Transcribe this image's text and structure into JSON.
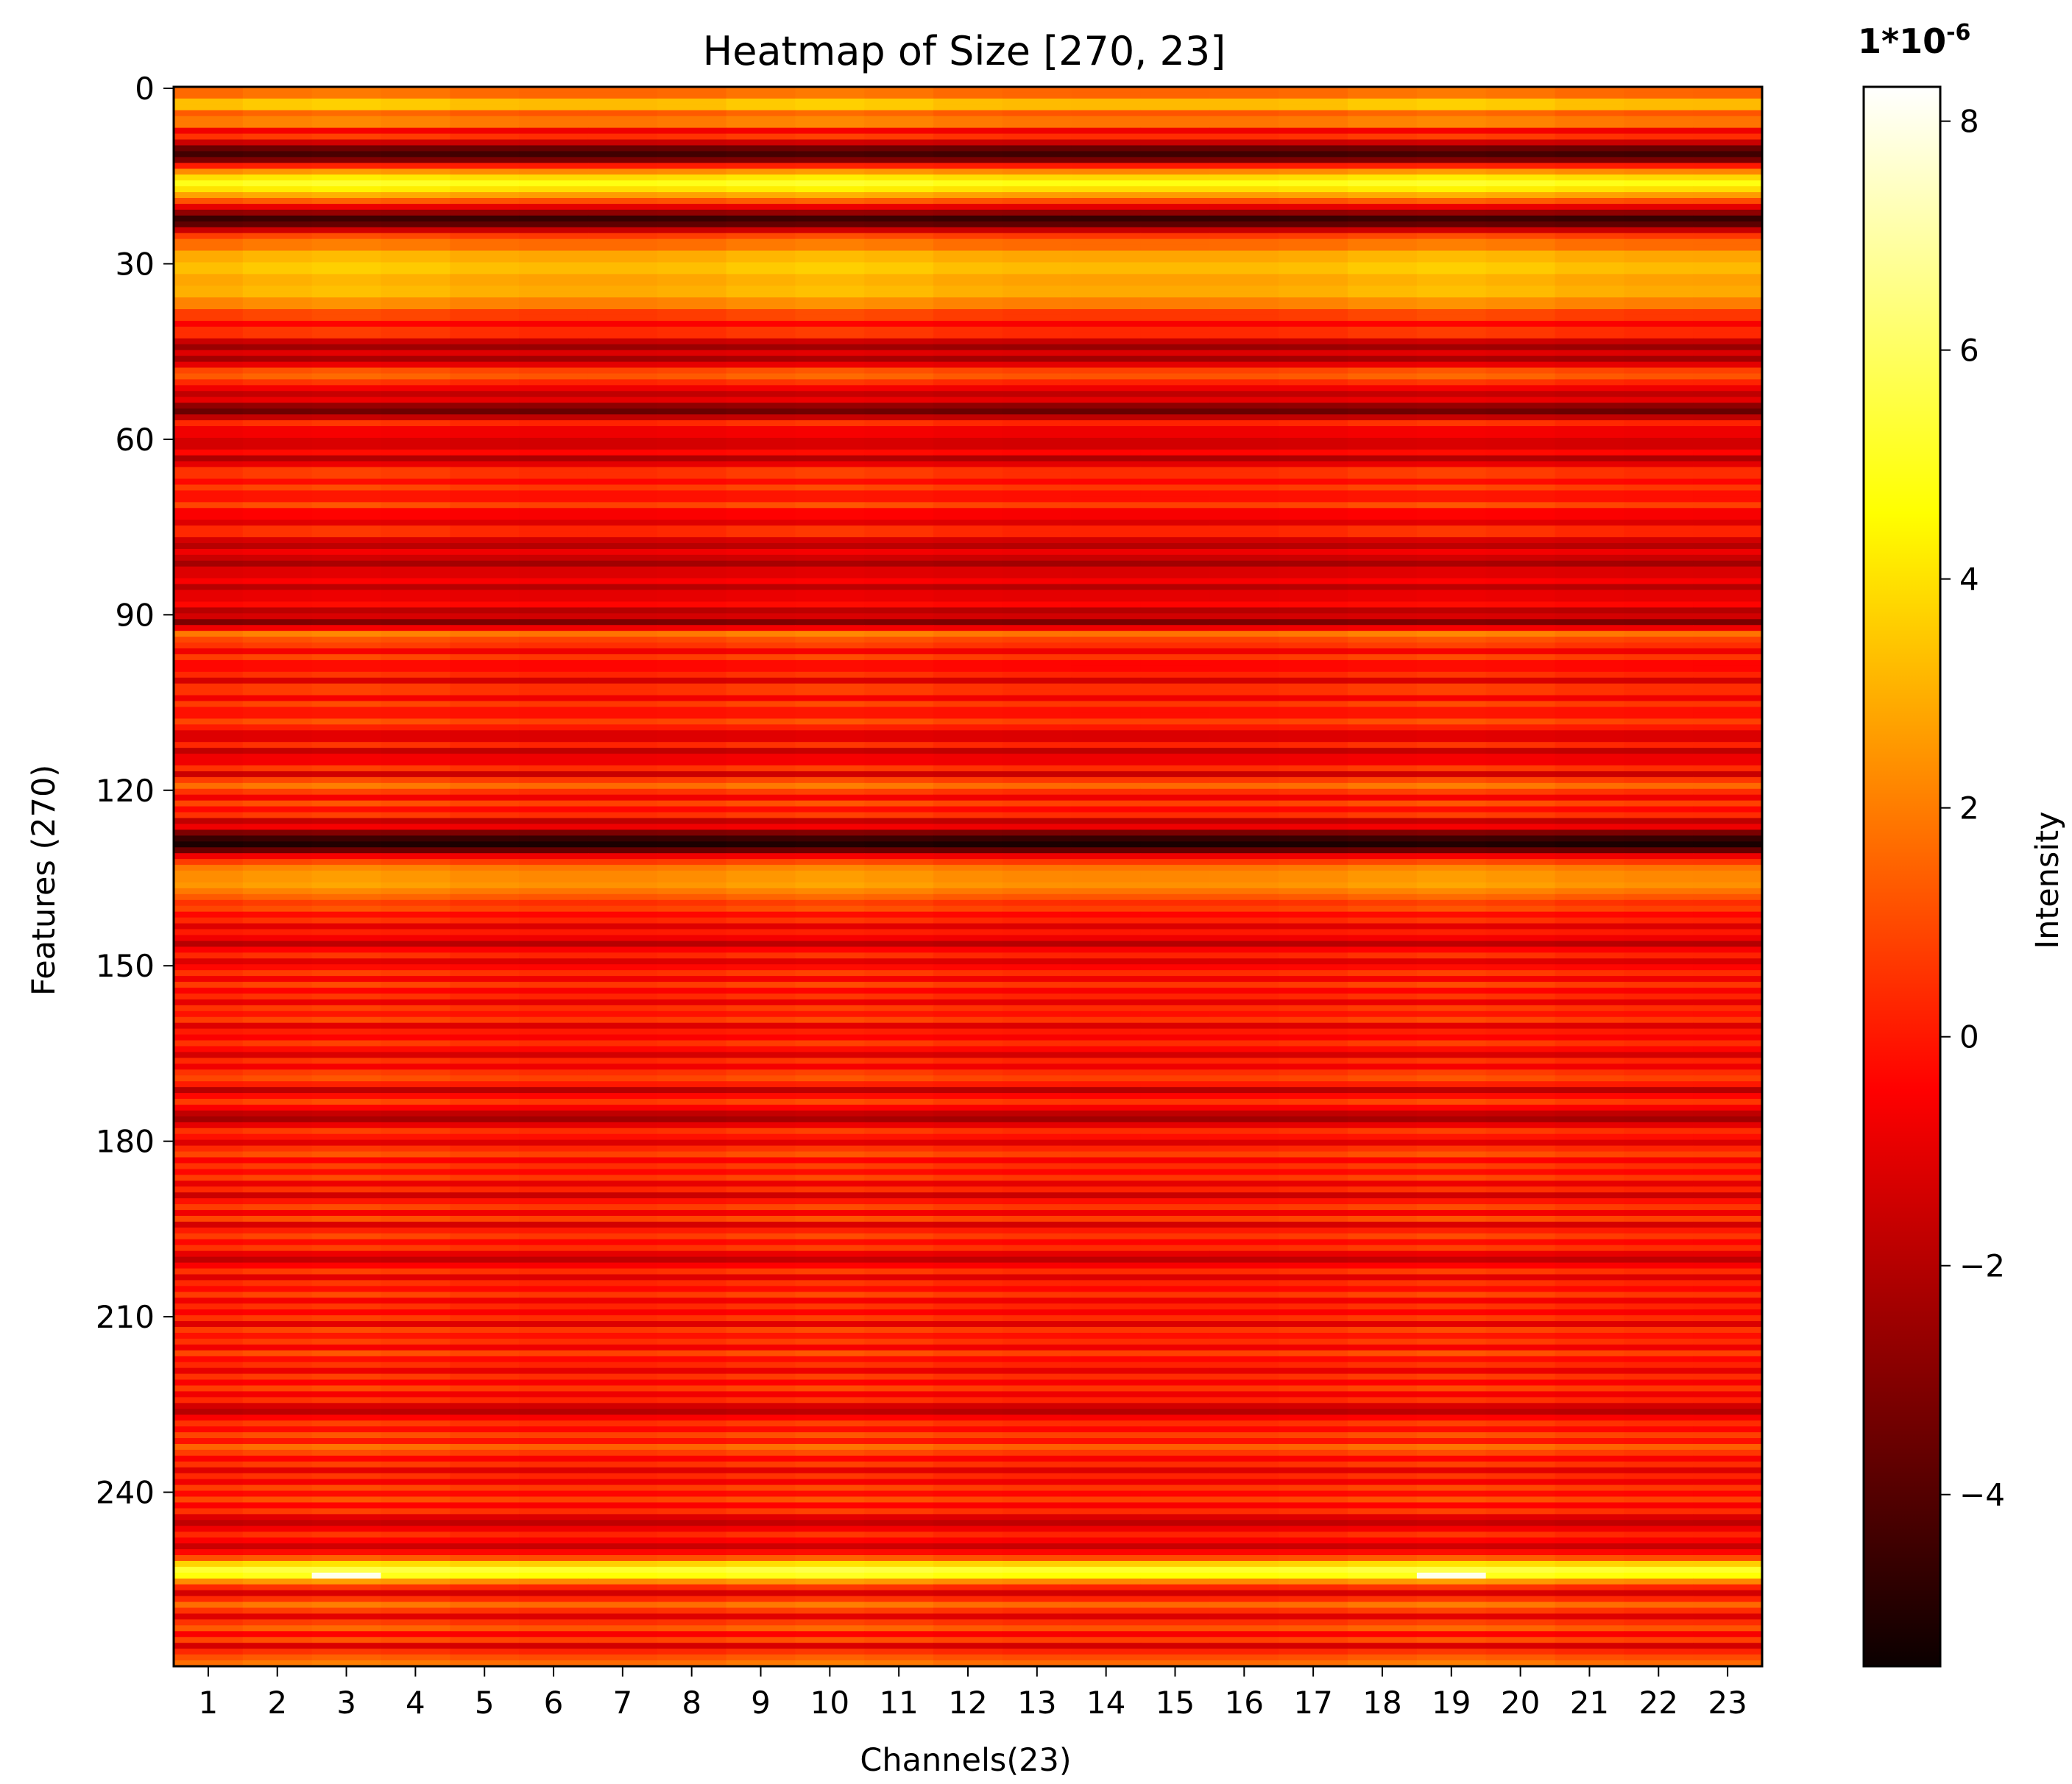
{
  "chart_data": {
    "type": "heatmap",
    "title": "Heatmap of Size [270, 23]",
    "xlabel": "Channels(23)",
    "ylabel": "Features (270)",
    "x_categories": [
      "1",
      "2",
      "3",
      "4",
      "5",
      "6",
      "7",
      "8",
      "9",
      "10",
      "11",
      "12",
      "13",
      "14",
      "15",
      "16",
      "17",
      "18",
      "19",
      "20",
      "21",
      "22",
      "23"
    ],
    "y_ticks": [
      0,
      30,
      60,
      90,
      120,
      150,
      180,
      210,
      240
    ],
    "y_range": [
      0,
      270
    ],
    "rows": 270,
    "columns": 23,
    "colormap": "hot",
    "colorbar": {
      "label": "Intensity",
      "scale_title": "1*10",
      "scale_exponent": "-6",
      "range": [
        -5.5,
        8.3
      ],
      "ticks": [
        -4,
        -2,
        0,
        2,
        4,
        6,
        8
      ],
      "tick_labels": [
        "−4",
        "−2",
        "0",
        "2",
        "4",
        "6",
        "8"
      ]
    },
    "row_profile_breakpoints": [
      [
        0,
        1.5
      ],
      [
        2,
        3.2
      ],
      [
        4,
        1.2
      ],
      [
        5,
        1.8
      ],
      [
        7,
        -0.8
      ],
      [
        8,
        0.4
      ],
      [
        9,
        -1.6
      ],
      [
        10,
        -3.6
      ],
      [
        11,
        -4.4
      ],
      [
        12,
        -3.2
      ],
      [
        13,
        0.0
      ],
      [
        14,
        2.2
      ],
      [
        15,
        3.8
      ],
      [
        16,
        4.8
      ],
      [
        17,
        3.9
      ],
      [
        18,
        2.6
      ],
      [
        19,
        1.0
      ],
      [
        20,
        -1.0
      ],
      [
        21,
        -2.8
      ],
      [
        22,
        -4.6
      ],
      [
        23,
        -3.8
      ],
      [
        24,
        -1.6
      ],
      [
        25,
        0.6
      ],
      [
        26,
        1.6
      ],
      [
        28,
        2.8
      ],
      [
        30,
        3.2
      ],
      [
        32,
        2.7
      ],
      [
        34,
        2.9
      ],
      [
        36,
        2.0
      ],
      [
        38,
        0.6
      ],
      [
        40,
        -0.6
      ],
      [
        41,
        0.3
      ],
      [
        43,
        -1.6
      ],
      [
        44,
        -2.6
      ],
      [
        45,
        -1.2
      ],
      [
        46,
        -2.4
      ],
      [
        47,
        -1.0
      ],
      [
        48,
        0.8
      ],
      [
        49,
        1.2
      ],
      [
        50,
        0.2
      ],
      [
        51,
        -0.8
      ],
      [
        52,
        -1.8
      ],
      [
        53,
        -1.0
      ],
      [
        54,
        -2.8
      ],
      [
        55,
        -3.6
      ],
      [
        56,
        -1.8
      ],
      [
        57,
        0.2
      ],
      [
        58,
        -0.8
      ],
      [
        60,
        -1.4
      ],
      [
        62,
        -0.4
      ],
      [
        63,
        -2.2
      ],
      [
        64,
        -1.0
      ],
      [
        65,
        0.4
      ],
      [
        67,
        -0.4
      ],
      [
        68,
        0.6
      ],
      [
        69,
        -0.2
      ],
      [
        71,
        0.8
      ],
      [
        72,
        -0.6
      ],
      [
        74,
        -1.2
      ],
      [
        75,
        0.2
      ],
      [
        77,
        -1.4
      ],
      [
        78,
        -2.0
      ],
      [
        79,
        -0.8
      ],
      [
        80,
        -1.6
      ],
      [
        81,
        -2.4
      ],
      [
        82,
        -1.2
      ],
      [
        84,
        -0.6
      ],
      [
        85,
        -2.0
      ],
      [
        86,
        -1.0
      ],
      [
        88,
        -0.4
      ],
      [
        89,
        -2.0
      ],
      [
        90,
        -1.4
      ],
      [
        91,
        -3.2
      ],
      [
        92,
        -0.8
      ],
      [
        93,
        1.8
      ],
      [
        94,
        0.8
      ],
      [
        95,
        0.4
      ],
      [
        96,
        -0.8
      ],
      [
        97,
        0.6
      ],
      [
        98,
        -0.4
      ],
      [
        100,
        0.2
      ],
      [
        101,
        -1.4
      ],
      [
        102,
        0.4
      ],
      [
        104,
        -0.8
      ],
      [
        105,
        0.6
      ],
      [
        106,
        -0.2
      ],
      [
        108,
        0.8
      ],
      [
        109,
        0.0
      ],
      [
        110,
        -1.2
      ],
      [
        112,
        0.2
      ],
      [
        113,
        -1.8
      ],
      [
        114,
        -0.8
      ],
      [
        116,
        0.4
      ],
      [
        117,
        -1.6
      ],
      [
        118,
        0.6
      ],
      [
        119,
        1.6
      ],
      [
        120,
        0.4
      ],
      [
        121,
        -0.8
      ],
      [
        122,
        0.8
      ],
      [
        123,
        -0.4
      ],
      [
        124,
        0.4
      ],
      [
        125,
        -1.8
      ],
      [
        126,
        -0.8
      ],
      [
        127,
        -3.2
      ],
      [
        128,
        -4.6
      ],
      [
        129,
        -5.2
      ],
      [
        130,
        -3.6
      ],
      [
        131,
        -0.8
      ],
      [
        132,
        0.6
      ],
      [
        133,
        1.8
      ],
      [
        134,
        2.2
      ],
      [
        136,
        2.4
      ],
      [
        137,
        1.8
      ],
      [
        138,
        1.2
      ],
      [
        139,
        0.4
      ],
      [
        140,
        0.8
      ],
      [
        141,
        -0.4
      ],
      [
        142,
        0.2
      ],
      [
        143,
        -1.2
      ],
      [
        144,
        0.0
      ],
      [
        145,
        -0.8
      ],
      [
        146,
        -2.0
      ],
      [
        147,
        -0.6
      ],
      [
        148,
        0.2
      ],
      [
        149,
        -1.2
      ],
      [
        150,
        -0.4
      ],
      [
        151,
        0.4
      ],
      [
        152,
        -0.8
      ],
      [
        153,
        0.6
      ],
      [
        154,
        -0.6
      ],
      [
        155,
        0.2
      ],
      [
        156,
        -1.0
      ],
      [
        157,
        0.4
      ],
      [
        158,
        -0.2
      ],
      [
        159,
        0.6
      ],
      [
        160,
        -1.2
      ],
      [
        161,
        0.0
      ],
      [
        162,
        -0.6
      ],
      [
        163,
        0.4
      ],
      [
        164,
        -0.4
      ],
      [
        165,
        -1.4
      ],
      [
        166,
        0.2
      ],
      [
        167,
        -0.8
      ],
      [
        168,
        0.4
      ],
      [
        169,
        0.8
      ],
      [
        170,
        0.0
      ],
      [
        171,
        -2.0
      ],
      [
        172,
        -0.4
      ],
      [
        173,
        0.6
      ],
      [
        174,
        -0.6
      ],
      [
        175,
        -1.8
      ],
      [
        176,
        -2.4
      ],
      [
        177,
        -1.0
      ],
      [
        178,
        0.4
      ],
      [
        179,
        -0.2
      ],
      [
        180,
        -1.2
      ],
      [
        181,
        0.2
      ],
      [
        182,
        0.8
      ],
      [
        183,
        -0.6
      ],
      [
        184,
        0.4
      ],
      [
        185,
        -0.4
      ],
      [
        186,
        0.6
      ],
      [
        187,
        -1.0
      ],
      [
        188,
        0.2
      ],
      [
        189,
        -1.6
      ],
      [
        190,
        -0.2
      ],
      [
        191,
        0.6
      ],
      [
        192,
        -0.8
      ],
      [
        193,
        0.8
      ],
      [
        194,
        -1.4
      ],
      [
        195,
        0.0
      ],
      [
        196,
        0.6
      ],
      [
        197,
        -0.4
      ],
      [
        198,
        0.4
      ],
      [
        199,
        -1.0
      ],
      [
        200,
        -1.8
      ],
      [
        201,
        -0.6
      ],
      [
        202,
        0.4
      ],
      [
        203,
        -1.2
      ],
      [
        204,
        0.2
      ],
      [
        205,
        -0.4
      ],
      [
        206,
        0.6
      ],
      [
        207,
        -0.8
      ],
      [
        208,
        0.2
      ],
      [
        209,
        -0.6
      ],
      [
        210,
        0.4
      ],
      [
        211,
        -1.2
      ],
      [
        212,
        0.6
      ],
      [
        213,
        -0.2
      ],
      [
        214,
        0.4
      ],
      [
        215,
        -0.8
      ],
      [
        216,
        0.8
      ],
      [
        217,
        -0.4
      ],
      [
        218,
        0.2
      ],
      [
        219,
        -1.0
      ],
      [
        220,
        0.4
      ],
      [
        221,
        -0.6
      ],
      [
        222,
        0.6
      ],
      [
        223,
        -0.8
      ],
      [
        224,
        0.2
      ],
      [
        225,
        -1.4
      ],
      [
        226,
        -2.0
      ],
      [
        227,
        -0.6
      ],
      [
        228,
        0.4
      ],
      [
        229,
        -0.4
      ],
      [
        230,
        0.8
      ],
      [
        231,
        -0.2
      ],
      [
        232,
        1.4
      ],
      [
        233,
        0.6
      ],
      [
        234,
        -0.6
      ],
      [
        235,
        0.4
      ],
      [
        236,
        -1.2
      ],
      [
        237,
        0.2
      ],
      [
        238,
        -0.8
      ],
      [
        239,
        0.6
      ],
      [
        240,
        -0.4
      ],
      [
        241,
        0.8
      ],
      [
        242,
        -0.6
      ],
      [
        243,
        0.4
      ],
      [
        244,
        -1.2
      ],
      [
        245,
        -1.8
      ],
      [
        246,
        -0.8
      ],
      [
        247,
        0.2
      ],
      [
        248,
        -0.6
      ],
      [
        249,
        -1.6
      ],
      [
        250,
        -0.4
      ],
      [
        251,
        1.0
      ],
      [
        252,
        3.6
      ],
      [
        253,
        5.2
      ],
      [
        254,
        4.6
      ],
      [
        255,
        2.2
      ],
      [
        256,
        0.2
      ],
      [
        257,
        -1.4
      ],
      [
        258,
        0.2
      ],
      [
        259,
        1.6
      ],
      [
        260,
        0.4
      ],
      [
        261,
        -1.2
      ],
      [
        262,
        0.4
      ],
      [
        263,
        1.2
      ],
      [
        264,
        -0.6
      ],
      [
        265,
        0.8
      ],
      [
        266,
        -1.4
      ],
      [
        267,
        0.2
      ],
      [
        268,
        1.0
      ],
      [
        269,
        1.6
      ]
    ],
    "column_bias_peaks": [
      3,
      10,
      19
    ],
    "row_254_peak_columns": [
      3,
      19
    ],
    "row_254_peak_value": 8.0
  }
}
